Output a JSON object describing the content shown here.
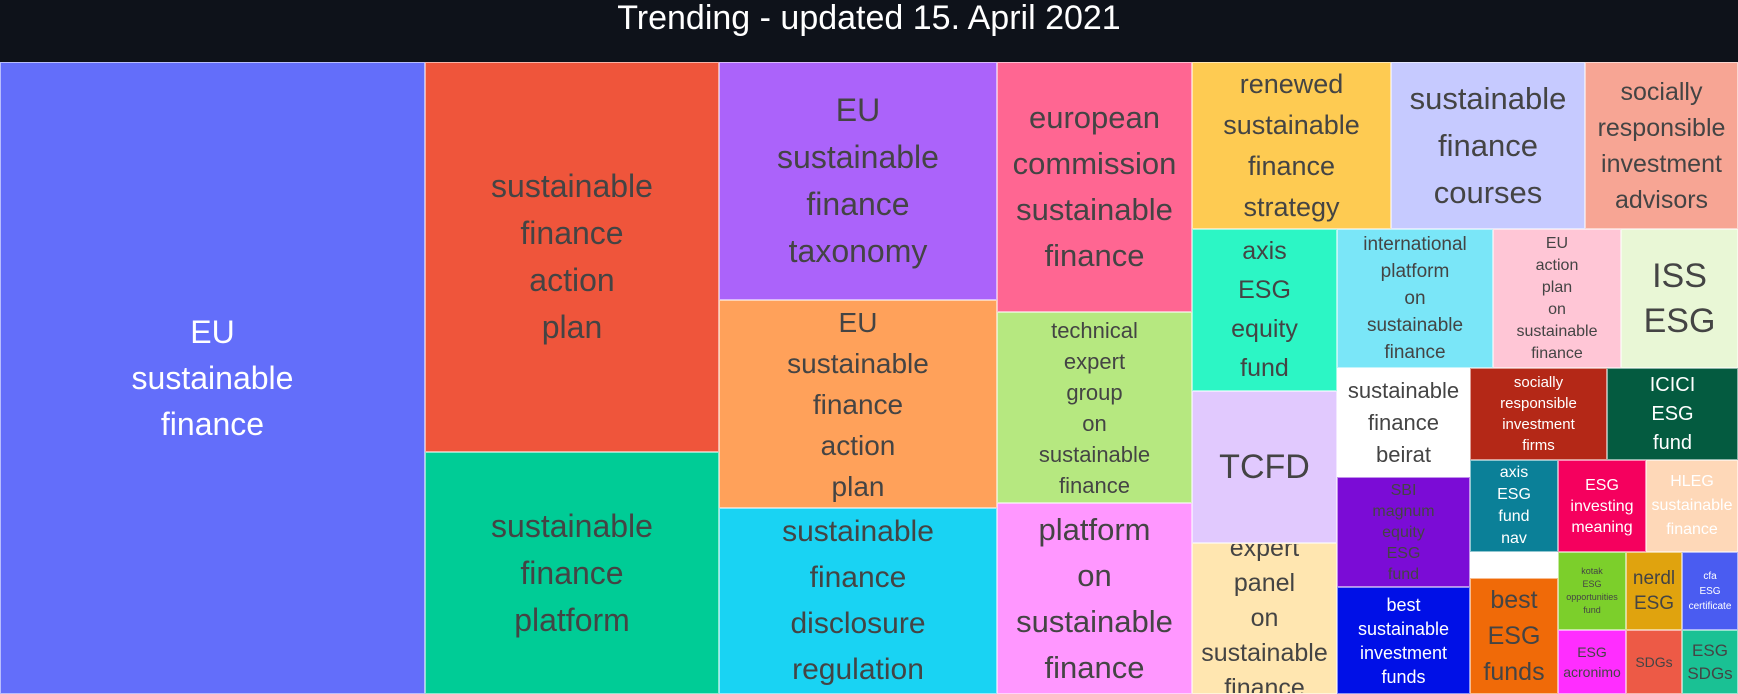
{
  "chart_data": {
    "type": "treemap",
    "title": "Trending - updated 15. April 2021",
    "items": [
      {
        "label": "EU sustainable finance",
        "color": "#636efa"
      },
      {
        "label": "sustainable finance action plan",
        "color": "#ef553b"
      },
      {
        "label": "sustainable finance platform",
        "color": "#00cc96"
      },
      {
        "label": "EU sustainable finance taxonomy",
        "color": "#ab63fa"
      },
      {
        "label": "EU sustainable finance action plan",
        "color": "#ffa15a"
      },
      {
        "label": "sustainable finance disclosure regulation",
        "color": "#19d3f3"
      },
      {
        "label": "european commission sustainable finance",
        "color": "#ff6692"
      },
      {
        "label": "technical expert group on sustainable finance",
        "color": "#b6e880"
      },
      {
        "label": "platform on sustainable finance",
        "color": "#ff97ff"
      },
      {
        "label": "renewed sustainable finance strategy",
        "color": "#fecb52"
      },
      {
        "label": "sustainable finance courses",
        "color": "#c6caff"
      },
      {
        "label": "socially responsible investment advisors",
        "color": "#f7a594"
      },
      {
        "label": "axis ESG equity fund",
        "color": "#2cf6c5"
      },
      {
        "label": "international platform on sustainable finance",
        "color": "#7ae6f8"
      },
      {
        "label": "EU action plan on sustainable finance",
        "color": "#ffc6d6"
      },
      {
        "label": "ISS ESG",
        "color": "#e9f7d6"
      },
      {
        "label": "TCFD",
        "color": "#e1c9fe"
      },
      {
        "label": "sustainable finance beirat",
        "color": "#ffffff"
      },
      {
        "label": "socially responsible investment firms",
        "color": "#b42817"
      },
      {
        "label": "ICICI ESG fund",
        "color": "#045b40"
      },
      {
        "label": "expert panel on sustainable finance",
        "color": "#ffe6b0"
      },
      {
        "label": "SBI magnum equity ESG fund",
        "color": "#7b0cd6"
      },
      {
        "label": "axis ESG fund nav",
        "color": "#0b8098"
      },
      {
        "label": "ESG investing meaning",
        "color": "#f5005e"
      },
      {
        "label": "HLEG sustainable finance",
        "color": "#fed8b8"
      },
      {
        "label": "best sustainable investment funds",
        "color": "#0010e7"
      },
      {
        "label": "best ESG funds",
        "color": "#f06a08"
      },
      {
        "label": "kotak ESG opportunities fund",
        "color": "#7ccf2b"
      },
      {
        "label": "nerdl ESG",
        "color": "#e0a30e"
      },
      {
        "label": "cfa ESG certificate",
        "color": "#4a5cf1"
      },
      {
        "label": "ESG acronimo",
        "color": "#ff2dff"
      },
      {
        "label": "SDGs",
        "color": "#ed5a46"
      },
      {
        "label": "ESG SDGs",
        "color": "#1ac194"
      }
    ]
  }
}
